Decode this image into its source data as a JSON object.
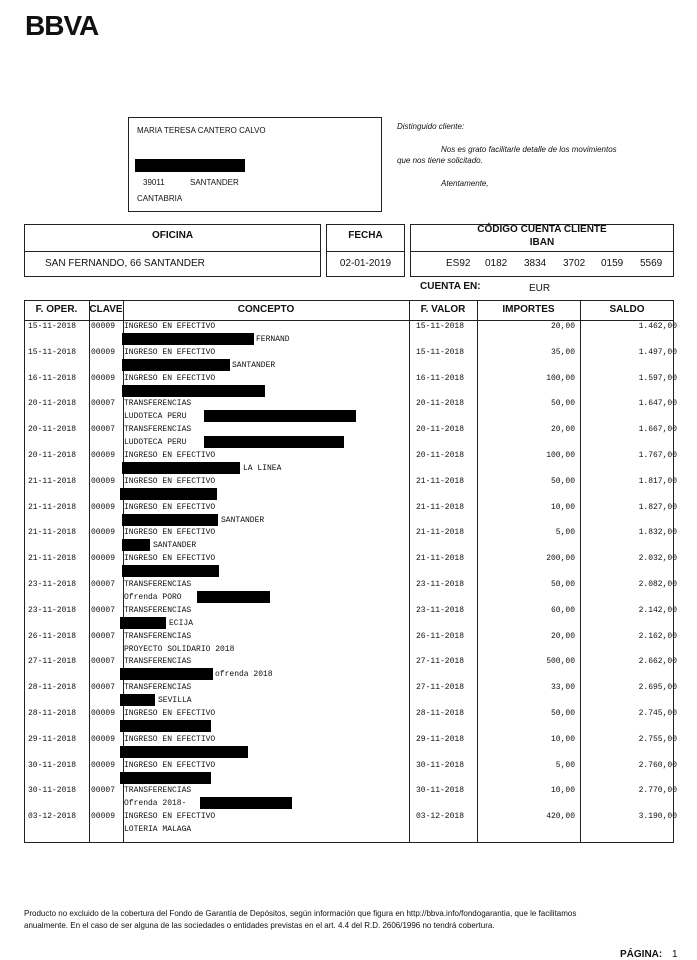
{
  "header": {
    "logo": "BBVA"
  },
  "address": {
    "name": "MARIA TERESA CANTERO CALVO",
    "postcode": "39011",
    "city": "SANTANDER",
    "region": "CANTABRIA"
  },
  "letter": {
    "greeting": "Distinguido cliente:",
    "line1": "Nos es grato facilitarle detalle de los movimientos",
    "line2": "que nos tiene solicitado.",
    "closing": "Atentamente,"
  },
  "info": {
    "oficina_label": "OFICINA",
    "oficina": "SAN FERNANDO, 66 SANTANDER",
    "fecha_label": "FECHA",
    "fecha": "02-01-2019",
    "codigo_label": "CÓDIGO CUENTA CLIENTE",
    "iban_label": "IBAN",
    "iban": [
      "ES92",
      "0182",
      "3834",
      "3702",
      "0159",
      "5569"
    ]
  },
  "account": {
    "label": "CUENTA EN:",
    "currency": "EUR"
  },
  "table": {
    "headers": [
      "F. OPER.",
      "CLAVE",
      "CONCEPTO",
      "F. VALOR",
      "IMPORTES",
      "SALDO"
    ],
    "rows": [
      [
        "15-11-2018",
        "00009",
        [
          "INGRESO EN EFECTIVO",
          "FERNAND"
        ],
        "15-11-2018",
        "20,00",
        "1.462,00"
      ],
      [
        "15-11-2018",
        "00009",
        [
          "INGRESO EN EFECTIVO",
          "SANTANDER"
        ],
        "15-11-2018",
        "35,00",
        "1.497,00"
      ],
      [
        "16-11-2018",
        "00009",
        [
          "INGRESO EN EFECTIVO"
        ],
        "16-11-2018",
        "100,00",
        "1.597,00"
      ],
      [
        "20-11-2018",
        "00007",
        [
          "TRANSFERENCIAS",
          "LUDOTECA PERU"
        ],
        "20-11-2018",
        "50,00",
        "1.647,00"
      ],
      [
        "20-11-2018",
        "00007",
        [
          "TRANSFERENCIAS",
          "LUDOTECA PERU"
        ],
        "20-11-2018",
        "20,00",
        "1.667,00"
      ],
      [
        "20-11-2018",
        "00009",
        [
          "INGRESO EN EFECTIVO",
          "LA LINEA"
        ],
        "20-11-2018",
        "100,00",
        "1.767,00"
      ],
      [
        "21-11-2018",
        "00009",
        [
          "INGRESO EN EFECTIVO"
        ],
        "21-11-2018",
        "50,00",
        "1.817,00"
      ],
      [
        "21-11-2018",
        "00009",
        [
          "INGRESO EN EFECTIVO",
          "SANTANDER"
        ],
        "21-11-2018",
        "10,00",
        "1.827,00"
      ],
      [
        "21-11-2018",
        "00009",
        [
          "INGRESO EN EFECTIVO",
          "SANTANDER"
        ],
        "21-11-2018",
        "5,00",
        "1.832,00"
      ],
      [
        "21-11-2018",
        "00009",
        [
          "INGRESO EN EFECTIVO"
        ],
        "21-11-2018",
        "200,00",
        "2.032,00"
      ],
      [
        "23-11-2018",
        "00007",
        [
          "TRANSFERENCIAS",
          "Ofrenda PORO"
        ],
        "23-11-2018",
        "50,00",
        "2.082,00"
      ],
      [
        "23-11-2018",
        "00007",
        [
          "TRANSFERENCIAS",
          "ECIJA"
        ],
        "23-11-2018",
        "60,00",
        "2.142,00"
      ],
      [
        "26-11-2018",
        "00007",
        [
          "TRANSFERENCIAS",
          "PROYECTO SOLIDARIO 2018"
        ],
        "26-11-2018",
        "20,00",
        "2.162,00"
      ],
      [
        "27-11-2018",
        "00007",
        [
          "TRANSFERENCIAS",
          "ofrenda 2018"
        ],
        "27-11-2018",
        "500,00",
        "2.662,00"
      ],
      [
        "28-11-2018",
        "00007",
        [
          "TRANSFERENCIAS",
          "SEVILLA"
        ],
        "27-11-2018",
        "33,00",
        "2.695,00"
      ],
      [
        "28-11-2018",
        "00009",
        [
          "INGRESO EN EFECTIVO"
        ],
        "28-11-2018",
        "50,00",
        "2.745,00"
      ],
      [
        "29-11-2018",
        "00009",
        [
          "INGRESO EN EFECTIVO"
        ],
        "29-11-2018",
        "10,00",
        "2.755,00"
      ],
      [
        "30-11-2018",
        "00009",
        [
          "INGRESO EN EFECTIVO"
        ],
        "30-11-2018",
        "5,00",
        "2.760,00"
      ],
      [
        "30-11-2018",
        "00007",
        [
          "TRANSFERENCIAS",
          "Ofrenda 2018-"
        ],
        "30-11-2018",
        "10,00",
        "2.770,00"
      ],
      [
        "03-12-2018",
        "00009",
        [
          "INGRESO EN EFECTIVO",
          "LOTERIA MALAGA"
        ],
        "03-12-2018",
        "420,00",
        "3.190,00"
      ]
    ]
  },
  "footer": {
    "line1": "Producto no excluido de la cobertura del Fondo de Garantía de Depósitos, según información que figura en  http://bbva.info/fondogarantia, que le facilitamos",
    "line2": "anualmente. En el caso de ser alguna de las sociedades o entidades previstas en el art. 4.4 del R.D. 2606/1996 no tendrá cobertura.",
    "page_label": "PÁGINA:",
    "page": "1"
  }
}
